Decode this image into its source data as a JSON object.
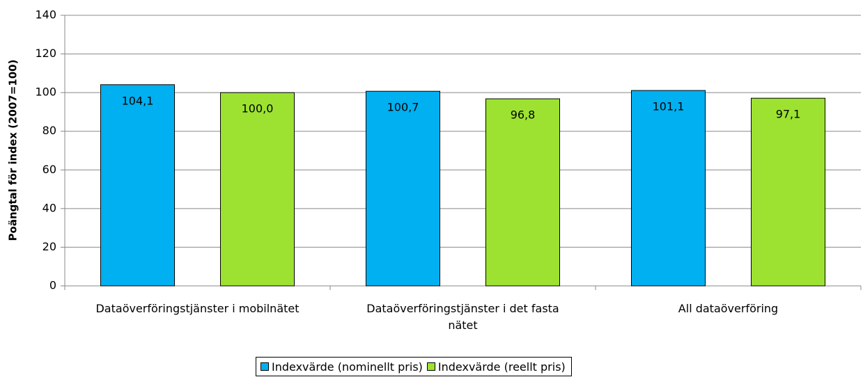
{
  "chart_data": {
    "type": "bar",
    "y_label": "Poängtal för index (2007=100)",
    "categories": [
      "Dataöverföringstjänster i mobilnätet",
      "Dataöverföringstjänster i det fasta nätet",
      "All dataöverföring"
    ],
    "series": [
      {
        "name": "Indexvärde (nominellt pris)",
        "color": "#00b0f0",
        "values": [
          104.1,
          100.7,
          101.1
        ],
        "value_labels": [
          "104,1",
          "100,7",
          "101,1"
        ]
      },
      {
        "name": "Indexvärde (reellt pris)",
        "color": "#9de231",
        "values": [
          100.0,
          96.8,
          97.1
        ],
        "value_labels": [
          "100,0",
          "96,8",
          "97,1"
        ]
      }
    ],
    "ylim": [
      0,
      140
    ],
    "yticks": [
      0,
      20,
      40,
      60,
      80,
      100,
      120,
      140
    ],
    "grid": true
  }
}
